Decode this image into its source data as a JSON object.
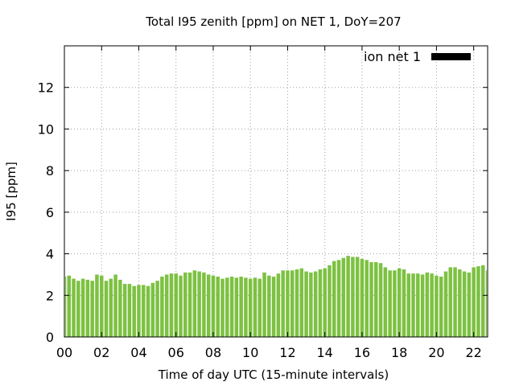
{
  "chart_data": {
    "type": "bar",
    "title": "Total I95 zenith [ppm] on NET 1, DoY=207",
    "xlabel": "Time of day UTC (15-minute intervals)",
    "ylabel": "I95 [ppm]",
    "xlim": [
      0,
      22.75
    ],
    "ylim": [
      0,
      14
    ],
    "x_ticks": [
      "00",
      "02",
      "04",
      "06",
      "08",
      "10",
      "12",
      "14",
      "16",
      "18",
      "20",
      "22"
    ],
    "y_ticks": [
      "0",
      "2",
      "4",
      "6",
      "8",
      "10",
      "12"
    ],
    "grid": true,
    "legend_position": "top-right",
    "series": [
      {
        "name": "ion net 1",
        "color": "#7dc142",
        "x": [
          0.0,
          0.25,
          0.5,
          0.75,
          1.0,
          1.25,
          1.5,
          1.75,
          2.0,
          2.25,
          2.5,
          2.75,
          3.0,
          3.25,
          3.5,
          3.75,
          4.0,
          4.25,
          4.5,
          4.75,
          5.0,
          5.25,
          5.5,
          5.75,
          6.0,
          6.25,
          6.5,
          6.75,
          7.0,
          7.25,
          7.5,
          7.75,
          8.0,
          8.25,
          8.5,
          8.75,
          9.0,
          9.25,
          9.5,
          9.75,
          10.0,
          10.25,
          10.5,
          10.75,
          11.0,
          11.25,
          11.5,
          11.75,
          12.0,
          12.25,
          12.5,
          12.75,
          13.0,
          13.25,
          13.5,
          13.75,
          14.0,
          14.25,
          14.5,
          14.75,
          15.0,
          15.25,
          15.5,
          15.75,
          16.0,
          16.25,
          16.5,
          16.75,
          17.0,
          17.25,
          17.5,
          17.75,
          18.0,
          18.25,
          18.5,
          18.75,
          19.0,
          19.25,
          19.5,
          19.75,
          20.0,
          20.25,
          20.5,
          20.75,
          21.0,
          21.25,
          21.5,
          21.75,
          22.0,
          22.25,
          22.5,
          22.75
        ],
        "values": [
          2.9,
          2.95,
          2.8,
          2.7,
          2.8,
          2.75,
          2.7,
          3.0,
          2.95,
          2.7,
          2.8,
          3.0,
          2.75,
          2.55,
          2.55,
          2.45,
          2.5,
          2.5,
          2.45,
          2.6,
          2.7,
          2.9,
          3.0,
          3.05,
          3.05,
          2.95,
          3.1,
          3.1,
          3.2,
          3.15,
          3.1,
          3.0,
          2.95,
          2.9,
          2.8,
          2.85,
          2.9,
          2.85,
          2.9,
          2.85,
          2.8,
          2.85,
          2.8,
          3.1,
          2.95,
          2.9,
          3.05,
          3.2,
          3.2,
          3.2,
          3.25,
          3.3,
          3.15,
          3.1,
          3.15,
          3.25,
          3.3,
          3.45,
          3.65,
          3.7,
          3.8,
          3.9,
          3.85,
          3.85,
          3.75,
          3.7,
          3.6,
          3.6,
          3.55,
          3.35,
          3.2,
          3.2,
          3.3,
          3.25,
          3.05,
          3.05,
          3.05,
          3.0,
          3.1,
          3.05,
          2.95,
          2.9,
          3.15,
          3.35,
          3.35,
          3.25,
          3.15,
          3.1,
          3.35,
          3.4,
          3.45,
          3.2
        ]
      }
    ]
  }
}
